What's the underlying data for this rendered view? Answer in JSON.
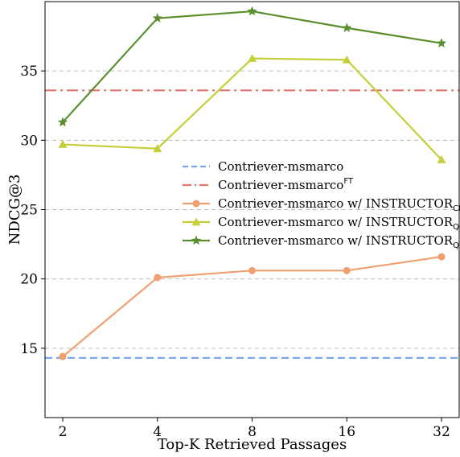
{
  "chart_data": {
    "type": "line",
    "xlabel": "Top-K Retrieved Passages",
    "ylabel": "NDCG@3",
    "categories": [
      "2",
      "4",
      "8",
      "16",
      "32"
    ],
    "ylim": [
      10,
      40
    ],
    "yticks": [
      15,
      20,
      25,
      30,
      35
    ],
    "grid": "horizontal-dashed",
    "legend_position": "center-right",
    "series": [
      {
        "name": "Contriever-msmarco",
        "kind": "baseline",
        "value": 14.3,
        "color": "#7ba7f0",
        "style": "dashed"
      },
      {
        "name": "Contriever-msmarco",
        "name_superscript": "FT",
        "kind": "baseline",
        "value": 33.6,
        "color": "#e0766e",
        "style": "dash-dot"
      },
      {
        "name": "Contriever-msmarco w/ INSTRUCTOR",
        "name_subscript": "CRCG",
        "kind": "line",
        "values": [
          14.4,
          20.1,
          20.6,
          20.6,
          21.6
        ],
        "color": "#f0a070",
        "marker": "circle"
      },
      {
        "name": "Contriever-msmarco w/ INSTRUCTOR",
        "name_subscript": "QRLV",
        "kind": "line",
        "values": [
          29.7,
          29.4,
          35.9,
          35.8,
          28.6
        ],
        "color": "#c4cf3a",
        "marker": "triangle"
      },
      {
        "name": "Contriever-msmarco w/ INSTRUCTOR",
        "name_subscript": "QRPG",
        "kind": "line",
        "values": [
          31.3,
          38.8,
          39.3,
          38.1,
          37.0
        ],
        "color": "#5a8f2e",
        "marker": "star"
      }
    ]
  }
}
